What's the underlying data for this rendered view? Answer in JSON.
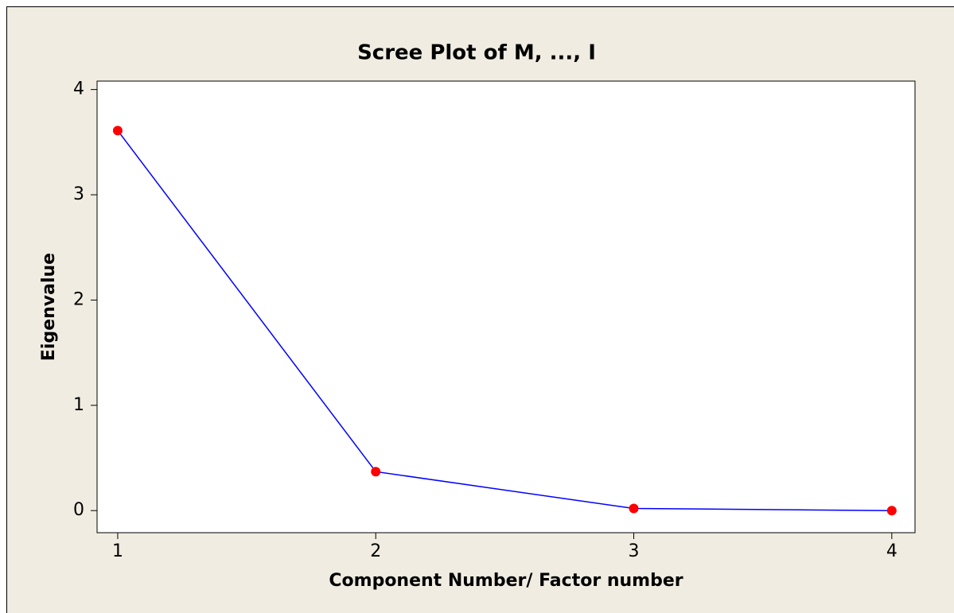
{
  "chart_data": {
    "type": "line",
    "title": "Scree Plot of M, ..., I",
    "x_label": "Component Number/ Factor number",
    "y_label": "Eigenvalue",
    "x": [
      1,
      2,
      3,
      4
    ],
    "series": [
      {
        "name": "Eigenvalue",
        "color": "#0000ff",
        "marker_color": "#ff0000",
        "values": [
          3.61,
          0.37,
          0.02,
          0.0
        ]
      }
    ],
    "xlim": [
      0.92,
      4.09
    ],
    "xticks": [
      1,
      2,
      3,
      4
    ],
    "ylim": [
      -0.21,
      4.08
    ],
    "yticks": [
      0,
      1,
      2,
      3,
      4
    ]
  }
}
